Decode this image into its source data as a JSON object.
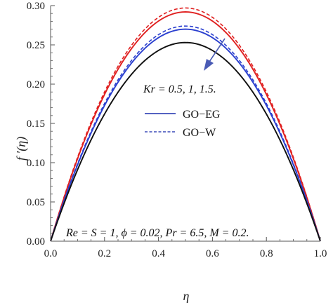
{
  "chart_data": {
    "type": "line",
    "xlabel": "η",
    "ylabel": "f ′(η)",
    "xlim": [
      0,
      1
    ],
    "ylim": [
      0,
      0.3
    ],
    "xticks": [
      "0.0",
      "0.2",
      "0.4",
      "0.6",
      "0.8",
      "1.0"
    ],
    "yticks": [
      "0.00",
      "0.05",
      "0.10",
      "0.15",
      "0.20",
      "0.25",
      "0.30"
    ],
    "grid": false,
    "legend": {
      "placement": "center",
      "entries": [
        {
          "label": "GO−EG",
          "style": "solid",
          "color": "#3b4bb8"
        },
        {
          "label": "GO−W",
          "style": "dashed",
          "color": "#3b4bb8"
        }
      ]
    },
    "annotations": {
      "parameter_label": "Kr = 0.5, 1, 1.5.",
      "fixed_params": "Re = S = 1, ϕ = 0.02, Pr = 6.5, M = 0.2."
    },
    "arrow_color": "#4a5bb5",
    "series": [
      {
        "kr": "0.5",
        "fluid": "GO-EG",
        "style": "solid",
        "color": "#e02020",
        "peak": 0.292
      },
      {
        "kr": "0.5",
        "fluid": "GO-W",
        "style": "dashed",
        "color": "#e02020",
        "peak": 0.297
      },
      {
        "kr": "1",
        "fluid": "GO-EG",
        "style": "solid",
        "color": "#2a3fcf",
        "peak": 0.27
      },
      {
        "kr": "1",
        "fluid": "GO-W",
        "style": "dashed",
        "color": "#2a3fcf",
        "peak": 0.274
      },
      {
        "kr": "1.5",
        "fluid": "GO-EG",
        "style": "solid",
        "color": "#111111",
        "peak": 0.253
      },
      {
        "kr": "1.5",
        "fluid": "GO-W",
        "style": "dashed",
        "color": "#111111",
        "peak": 0.253
      }
    ]
  }
}
